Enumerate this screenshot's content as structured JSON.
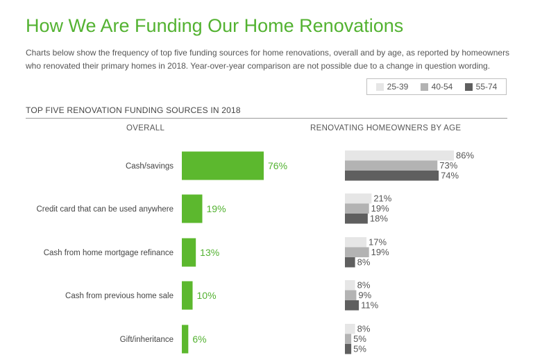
{
  "title": "How We Are Funding Our Home Renovations",
  "subtitle": "Charts below show the frequency of top five funding sources for home renovations, overall and by age, as reported by homeowners who renovated their primary homes in 2018. Year-over-year comparison are not possible due to a change in question wording.",
  "section_title": "TOP FIVE RENOVATION FUNDING SOURCES IN 2018",
  "colors": {
    "accent": "#53b231",
    "bar_overall": "#5cb82e",
    "age_25_39": "#e6e6e6",
    "age_40_54": "#b3b3b3",
    "age_55_74": "#5f5f5f"
  },
  "legend": [
    {
      "label": "25-39",
      "color": "#e6e6e6"
    },
    {
      "label": "40-54",
      "color": "#b3b3b3"
    },
    {
      "label": "55-74",
      "color": "#5f5f5f"
    }
  ],
  "chart_data": [
    {
      "type": "bar",
      "title": "OVERALL",
      "categories": [
        "Cash/savings",
        "Credit card that can be used anywhere",
        "Cash from home mortgage refinance",
        "Cash from previous home sale",
        "Gift/inheritance"
      ],
      "values": [
        76,
        19,
        13,
        10,
        6
      ],
      "value_labels": [
        "76%",
        "19%",
        "13%",
        "10%",
        "6%"
      ],
      "orientation": "horizontal",
      "xlim": [
        0,
        100
      ]
    },
    {
      "type": "bar",
      "title": "RENOVATING HOMEOWNERS BY AGE",
      "categories": [
        "Cash/savings",
        "Credit card that can be used anywhere",
        "Cash from home mortgage refinance",
        "Cash from previous home sale",
        "Gift/inheritance"
      ],
      "orientation": "horizontal",
      "xlim": [
        0,
        100
      ],
      "series": [
        {
          "name": "25-39",
          "values": [
            86,
            21,
            17,
            8,
            8
          ],
          "value_labels": [
            "86%",
            "21%",
            "17%",
            "8%",
            "8%"
          ]
        },
        {
          "name": "40-54",
          "values": [
            73,
            19,
            19,
            9,
            5
          ],
          "value_labels": [
            "73%",
            "19%",
            "19%",
            "9%",
            "5%"
          ]
        },
        {
          "name": "55-74",
          "values": [
            74,
            18,
            8,
            11,
            5
          ],
          "value_labels": [
            "74%",
            "18%",
            "8%",
            "11%",
            "5%"
          ]
        }
      ]
    }
  ]
}
